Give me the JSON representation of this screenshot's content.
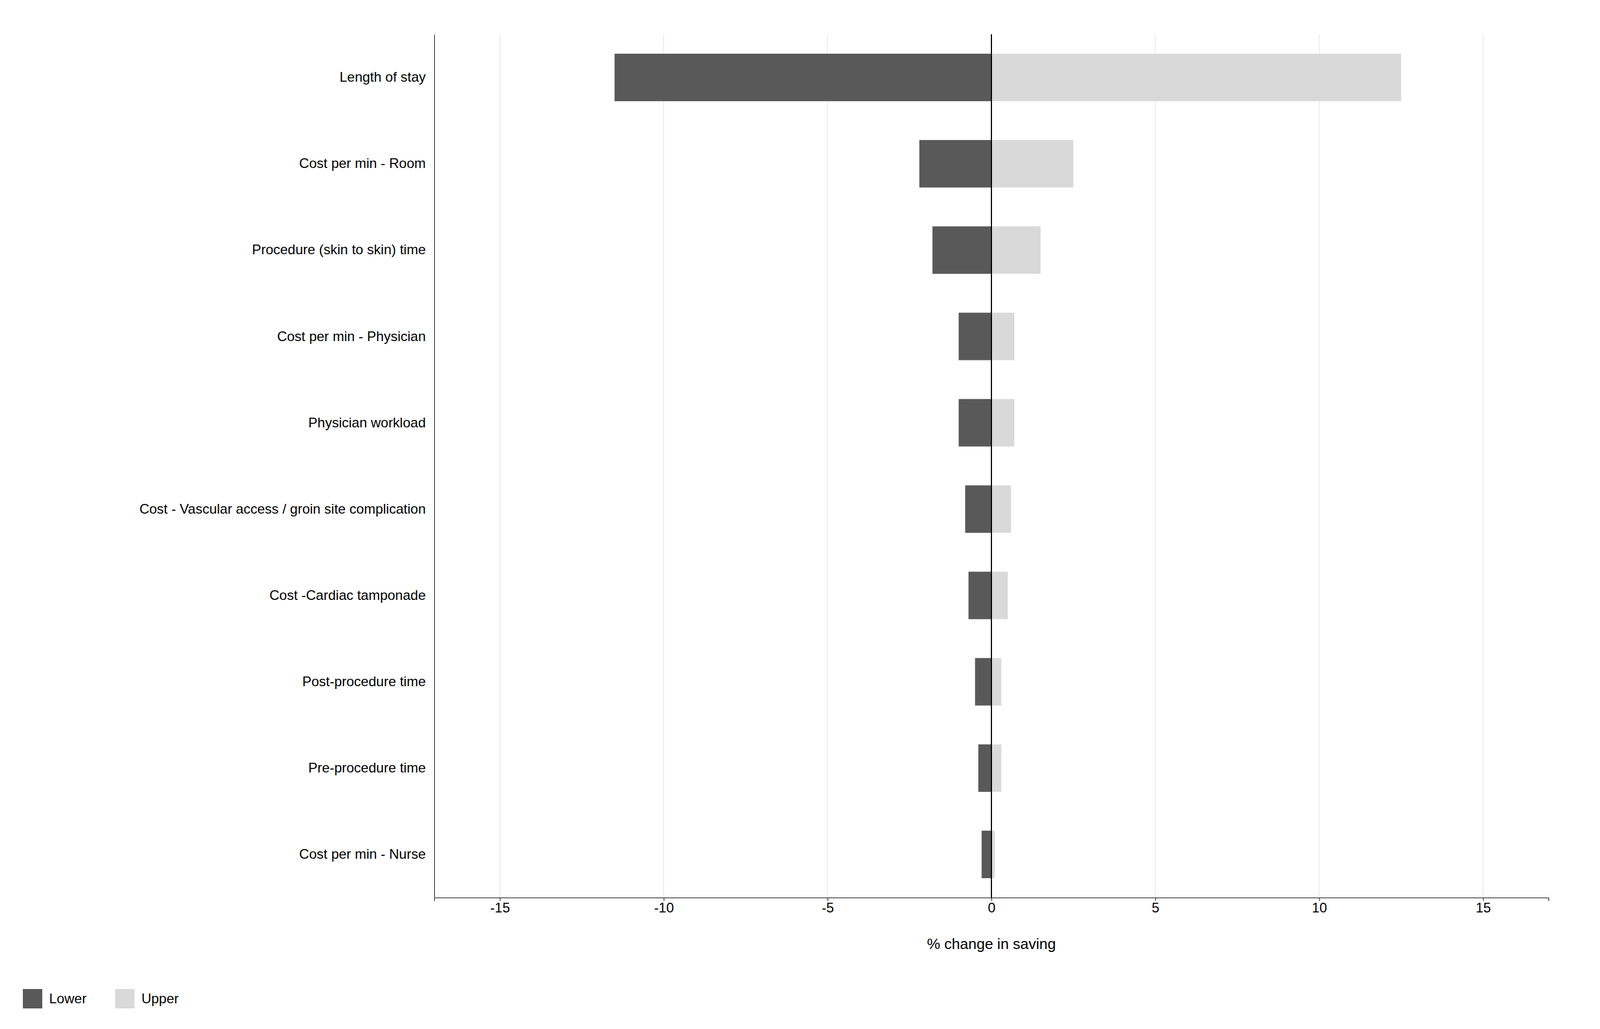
{
  "chart_data": {
    "type": "bar",
    "orientation": "horizontal",
    "categories": [
      "Cost per min - Nurse",
      "Pre-procedure time",
      "Post-procedure time",
      "Cost -Cardiac tamponade",
      "Cost - Vascular access / groin site complication",
      "Physician workload",
      "Cost per min - Physician",
      "Procedure (skin to skin) time",
      "Cost per min - Room",
      "Length of stay"
    ],
    "series": [
      {
        "name": "Lower",
        "color": "#595959",
        "values": [
          -0.3,
          -0.4,
          -0.5,
          -0.7,
          -0.8,
          -1.0,
          -1.0,
          -1.8,
          -2.2,
          -11.5
        ]
      },
      {
        "name": "Upper",
        "color": "#d9d9d9",
        "values": [
          0.1,
          0.3,
          0.3,
          0.5,
          0.6,
          0.7,
          0.7,
          1.5,
          2.5,
          12.5
        ]
      }
    ],
    "xlabel": "% change in saving",
    "xlim": [
      -17,
      17
    ],
    "xticks": [
      -15,
      -10,
      -5,
      0,
      5,
      10,
      15
    ],
    "grid": true,
    "legend": "lower left"
  }
}
